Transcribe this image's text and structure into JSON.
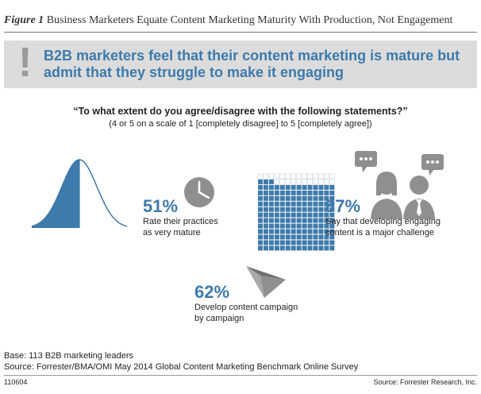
{
  "figure": {
    "label": "Figure 1",
    "title": "Business Marketers Equate Content Marketing Maturity With Production, Not Engagement"
  },
  "banner": {
    "icon": "exclamation-icon",
    "headline": "B2B marketers feel that their content marketing is mature but admit that they struggle to make it engaging"
  },
  "question": {
    "text": "“To what extent do you agree/disagree with the following statements?”",
    "scale": "(4 or 5 on a scale of 1 [completely disagree] to 5 [completely agree])"
  },
  "chart_data": {
    "type": "infographic",
    "title": "Business Marketers Equate Content Marketing Maturity With Production, Not Engagement",
    "stats": [
      {
        "value": "51%",
        "percent": 51,
        "label": "Rate their practices as very mature",
        "label_lines": [
          "Rate their practices",
          "as very mature"
        ],
        "icon": "clock-icon"
      },
      {
        "value": "87%",
        "percent": 87,
        "label": "Say that developing engaging content is a major challenge",
        "label_lines": [
          "Say that developing engaging",
          "content is a major challenge"
        ],
        "icon": "people-speech-icon"
      },
      {
        "value": "62%",
        "percent": 62,
        "label": "Develop content campaign by campaign",
        "label_lines": [
          "Develop content campaign",
          "by campaign"
        ],
        "icon": "paper-plane-icon"
      }
    ]
  },
  "base": "Base: 113 B2B marketing leaders",
  "source": "Source: Forrester/BMA/OMI May 2014 Global Content Marketing Benchmark Online Survey",
  "figure_id": "110604",
  "credit": "Source: Forrester Research, Inc.",
  "colors": {
    "accent": "#3e7aab",
    "icon_gray": "#8f8f8f",
    "banner_bg": "#dcdcdc"
  }
}
